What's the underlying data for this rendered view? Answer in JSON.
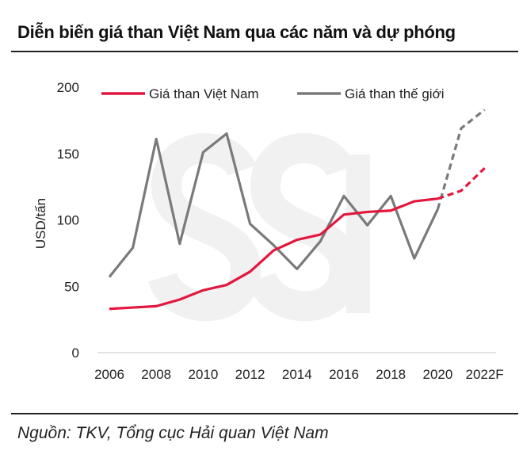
{
  "title": "Diễn biến giá than Việt Nam qua các năm và dự phóng",
  "source": "Nguồn: TKV, Tổng cục Hải quan Việt Nam",
  "watermark": "SSI",
  "chart_data": {
    "type": "line",
    "title": "Diễn biến giá than Việt Nam qua các năm và dự phóng",
    "ylabel": "USD/tấn",
    "xlabel": "",
    "ylim": [
      0,
      200
    ],
    "yticks": [
      0,
      50,
      100,
      150,
      200
    ],
    "x": [
      "2006",
      "2007",
      "2008",
      "2009",
      "2010",
      "2011",
      "2012",
      "2013",
      "2014",
      "2015",
      "2016",
      "2017",
      "2018",
      "2019",
      "2020",
      "2021F",
      "2022F"
    ],
    "xtick_labels": [
      "2006",
      "2008",
      "2010",
      "2012",
      "2014",
      "2016",
      "2018",
      "2020",
      "2022F"
    ],
    "forecast_from": "2020",
    "legend_position": "top",
    "grid": false,
    "series": [
      {
        "name": "Giá than Việt Nam",
        "color": "#e3173e",
        "values": [
          33,
          34,
          35,
          40,
          47,
          51,
          61,
          77,
          85,
          89,
          104,
          106,
          107,
          114,
          116,
          122,
          139
        ]
      },
      {
        "name": "Giá than thế giới",
        "color": "#7a7a7a",
        "values": [
          57,
          79,
          161,
          82,
          151,
          165,
          97,
          81,
          63,
          84,
          118,
          96,
          118,
          71,
          108,
          169,
          183
        ]
      }
    ]
  }
}
